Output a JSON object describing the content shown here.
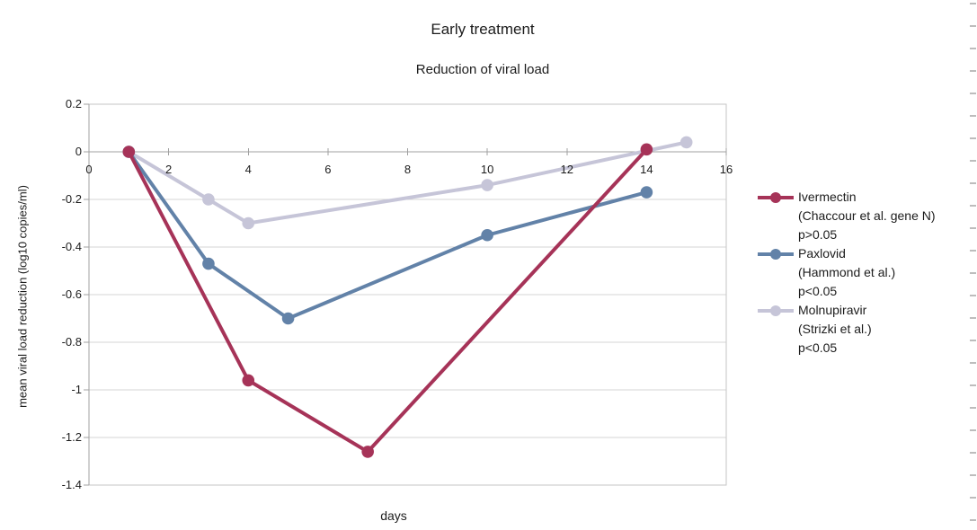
{
  "chart_data": {
    "type": "line",
    "title": "Early treatment",
    "subtitle": "Reduction of viral load",
    "xlabel": "days",
    "ylabel": "mean viral load reduction (log10 copies/ml)",
    "xlim": [
      0,
      16
    ],
    "ylim": [
      -1.4,
      0.2
    ],
    "x_ticks": {
      "values": [
        0,
        2,
        4,
        6,
        8,
        10,
        12,
        14,
        16
      ],
      "labels": [
        "0",
        "2",
        "4",
        "6",
        "8",
        "10",
        "12",
        "14",
        "16"
      ]
    },
    "y_ticks": {
      "values": [
        0.2,
        0,
        -0.2,
        -0.4,
        -0.6,
        -0.8,
        -1,
        -1.2,
        -1.4
      ],
      "labels": [
        "0.2",
        "0",
        "-0.2",
        "-0.4",
        "-0.6",
        "-0.8",
        "-1",
        "-1.2",
        "-1.4"
      ]
    },
    "grid": "horizontal",
    "legend_position": "right",
    "series": [
      {
        "name": "Ivermectin (Chaccour et al. gene N) p>0.05",
        "legend_lines": [
          "Ivermectin",
          "(Chaccour et al. gene N)",
          "p>0.05"
        ],
        "color": "#a63358",
        "x": [
          1,
          4,
          7,
          14
        ],
        "y": [
          0,
          -0.96,
          -1.26,
          0.01
        ]
      },
      {
        "name": "Paxlovid (Hammond et al.) p<0.05",
        "legend_lines": [
          "Paxlovid",
          "(Hammond et al.)",
          "p<0.05"
        ],
        "color": "#6282a8",
        "x": [
          1,
          3,
          5,
          10,
          14
        ],
        "y": [
          0,
          -0.47,
          -0.7,
          -0.35,
          -0.17
        ]
      },
      {
        "name": "Molnupiravir (Strizki et al.) p<0.05",
        "legend_lines": [
          "Molnupiravir",
          "(Strizki et al.)",
          "p<0.05"
        ],
        "color": "#c6c5d8",
        "x": [
          1,
          3,
          4,
          10,
          15
        ],
        "y": [
          0,
          -0.2,
          -0.3,
          -0.14,
          0.04
        ]
      }
    ]
  },
  "colors": {
    "background": "#ffffff",
    "grid": "#d4d4d4",
    "axis": "#a0a0a0",
    "plot_border": "#c6c6c6",
    "text": "#1c1c1c"
  }
}
